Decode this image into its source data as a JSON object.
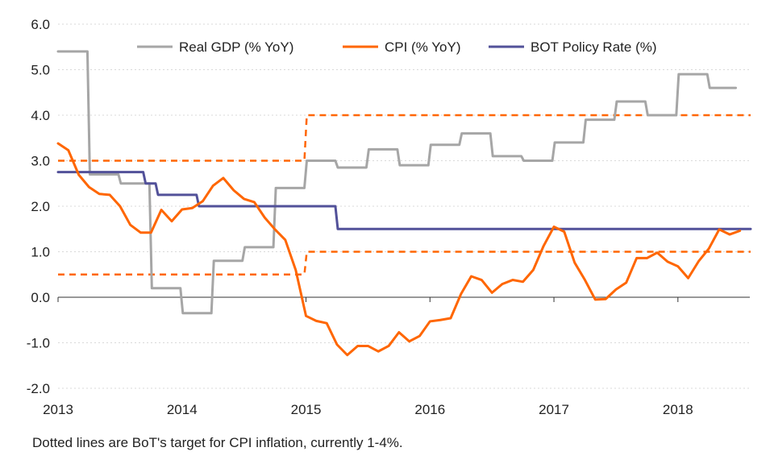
{
  "chart_data": {
    "type": "line",
    "title": "",
    "xlabel": "",
    "ylabel": "",
    "ylim": [
      -2.0,
      6.0
    ],
    "yticks": [
      "6.0",
      "5.0",
      "4.0",
      "3.0",
      "2.0",
      "1.0",
      "0.0",
      "-1.0",
      "-2.0"
    ],
    "ytick_values": [
      6,
      5,
      4,
      3,
      2,
      1,
      0,
      -1,
      -2
    ],
    "xlim": [
      2013.0,
      2018.58
    ],
    "xticks": [
      "2013",
      "2014",
      "2015",
      "2016",
      "2017",
      "2018"
    ],
    "xtick_values": [
      2013,
      2014,
      2015,
      2016,
      2017,
      2018
    ],
    "grid": "horizontal",
    "legend_position": "top",
    "series": [
      {
        "name": "Real GDP (% YoY)",
        "color": "#a6a6a6",
        "style": "solid",
        "step": true,
        "x": [
          2013.0,
          2013.25,
          2013.5,
          2013.75,
          2014.0,
          2014.25,
          2014.5,
          2014.75,
          2015.0,
          2015.25,
          2015.5,
          2015.75,
          2016.0,
          2016.25,
          2016.5,
          2016.75,
          2017.0,
          2017.25,
          2017.5,
          2017.75,
          2018.0,
          2018.25,
          2018.46
        ],
        "values": [
          5.4,
          2.7,
          2.5,
          0.2,
          -0.35,
          0.8,
          1.1,
          2.4,
          3.0,
          2.85,
          3.25,
          2.9,
          3.35,
          3.6,
          3.1,
          3.0,
          3.4,
          3.9,
          4.3,
          4.0,
          4.9,
          4.6,
          4.6
        ]
      },
      {
        "name": "CPI (% YoY)",
        "color": "#ff6600",
        "style": "solid",
        "step": false,
        "x": [
          2013.0,
          2013.083,
          2013.167,
          2013.25,
          2013.333,
          2013.417,
          2013.5,
          2013.583,
          2013.667,
          2013.75,
          2013.833,
          2013.917,
          2014.0,
          2014.083,
          2014.167,
          2014.25,
          2014.333,
          2014.417,
          2014.5,
          2014.583,
          2014.667,
          2014.75,
          2014.833,
          2014.917,
          2015.0,
          2015.083,
          2015.167,
          2015.25,
          2015.333,
          2015.417,
          2015.5,
          2015.583,
          2015.667,
          2015.75,
          2015.833,
          2015.917,
          2016.0,
          2016.083,
          2016.167,
          2016.25,
          2016.333,
          2016.417,
          2016.5,
          2016.583,
          2016.667,
          2016.75,
          2016.833,
          2016.917,
          2017.0,
          2017.083,
          2017.167,
          2017.25,
          2017.333,
          2017.417,
          2017.5,
          2017.583,
          2017.667,
          2017.75,
          2017.833,
          2017.917,
          2018.0,
          2018.083,
          2018.167,
          2018.25,
          2018.333,
          2018.417,
          2018.5
        ],
        "values": [
          3.38,
          3.23,
          2.69,
          2.42,
          2.27,
          2.25,
          2.0,
          1.59,
          1.42,
          1.42,
          1.92,
          1.67,
          1.93,
          1.96,
          2.11,
          2.45,
          2.62,
          2.35,
          2.16,
          2.09,
          1.75,
          1.49,
          1.26,
          0.6,
          -0.41,
          -0.52,
          -0.57,
          -1.04,
          -1.27,
          -1.07,
          -1.07,
          -1.19,
          -1.07,
          -0.77,
          -0.97,
          -0.85,
          -0.53,
          -0.5,
          -0.46,
          0.07,
          0.46,
          0.38,
          0.1,
          0.29,
          0.38,
          0.34,
          0.6,
          1.13,
          1.55,
          1.44,
          0.76,
          0.38,
          -0.05,
          -0.04,
          0.17,
          0.32,
          0.86,
          0.86,
          0.98,
          0.78,
          0.68,
          0.42,
          0.79,
          1.07,
          1.49,
          1.38,
          1.46
        ]
      },
      {
        "name": "BOT Policy Rate (%)",
        "color": "#525199",
        "style": "solid",
        "step": true,
        "x": [
          2013.0,
          2013.3,
          2013.7,
          2013.8,
          2014.13,
          2014.92,
          2015.25,
          2018.58
        ],
        "values": [
          2.75,
          2.75,
          2.5,
          2.25,
          2.0,
          2.0,
          1.5,
          1.5
        ]
      },
      {
        "name": "CPI target upper",
        "color": "#ff6600",
        "style": "dashed",
        "step": true,
        "legend": false,
        "x": [
          2013.0,
          2015.0,
          2018.58
        ],
        "values": [
          3.0,
          4.0,
          4.0
        ]
      },
      {
        "name": "CPI target lower",
        "color": "#ff6600",
        "style": "dashed",
        "step": true,
        "legend": false,
        "x": [
          2013.0,
          2015.0,
          2018.58
        ],
        "values": [
          0.5,
          1.0,
          1.0
        ]
      }
    ],
    "legend": [
      "Real GDP (% YoY)",
      "CPI (% YoY)",
      "BOT Policy Rate (%)"
    ],
    "footnote": "Dotted lines are BoT's target for CPI inflation, currently 1-4%."
  }
}
